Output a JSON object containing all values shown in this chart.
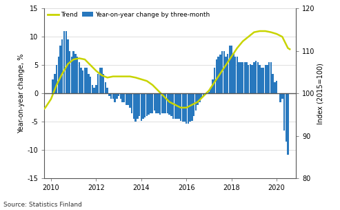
{
  "ylabel_left": "Year-on-year change, %",
  "ylabel_right": "Index (2015=100)",
  "source": "Source: Statistics Finland",
  "ylim_left": [
    -15,
    15
  ],
  "ylim_right": [
    80,
    120
  ],
  "bar_color": "#2878be",
  "trend_color": "#c8d400",
  "background_color": "#ffffff",
  "grid_color": "#d0d0d0",
  "legend_trend": "Trend",
  "legend_bar": "Year-on-year change by three-month",
  "bar_data": {
    "dates": [
      2010.083,
      2010.167,
      2010.25,
      2010.333,
      2010.417,
      2010.5,
      2010.583,
      2010.667,
      2010.75,
      2010.833,
      2010.917,
      2011.0,
      2011.083,
      2011.167,
      2011.25,
      2011.333,
      2011.417,
      2011.5,
      2011.583,
      2011.667,
      2011.75,
      2011.833,
      2011.917,
      2012.0,
      2012.083,
      2012.167,
      2012.25,
      2012.333,
      2012.417,
      2012.5,
      2012.583,
      2012.667,
      2012.75,
      2012.833,
      2012.917,
      2013.0,
      2013.083,
      2013.167,
      2013.25,
      2013.333,
      2013.417,
      2013.5,
      2013.583,
      2013.667,
      2013.75,
      2013.833,
      2013.917,
      2014.0,
      2014.083,
      2014.167,
      2014.25,
      2014.333,
      2014.417,
      2014.5,
      2014.583,
      2014.667,
      2014.75,
      2014.833,
      2014.917,
      2015.0,
      2015.083,
      2015.167,
      2015.25,
      2015.333,
      2015.417,
      2015.5,
      2015.583,
      2015.667,
      2015.75,
      2015.833,
      2015.917,
      2016.0,
      2016.083,
      2016.167,
      2016.25,
      2016.333,
      2016.417,
      2016.5,
      2016.583,
      2016.667,
      2016.75,
      2016.833,
      2016.917,
      2017.0,
      2017.083,
      2017.167,
      2017.25,
      2017.333,
      2017.417,
      2017.5,
      2017.583,
      2017.667,
      2017.75,
      2017.833,
      2017.917,
      2018.0,
      2018.083,
      2018.167,
      2018.25,
      2018.333,
      2018.417,
      2018.5,
      2018.583,
      2018.667,
      2018.75,
      2018.833,
      2018.917,
      2019.0,
      2019.083,
      2019.167,
      2019.25,
      2019.333,
      2019.417,
      2019.5,
      2019.583,
      2019.667,
      2019.75,
      2019.833,
      2019.917,
      2020.0,
      2020.083,
      2020.167,
      2020.25,
      2020.333,
      2020.417,
      2020.5
    ],
    "values": [
      2.5,
      3.5,
      5.0,
      6.5,
      8.5,
      9.5,
      11.0,
      11.0,
      9.5,
      7.5,
      6.5,
      7.5,
      7.0,
      6.5,
      5.5,
      4.5,
      4.0,
      4.5,
      4.5,
      3.5,
      3.0,
      1.5,
      1.0,
      1.5,
      3.5,
      4.5,
      4.5,
      3.5,
      2.0,
      1.0,
      -0.5,
      -1.0,
      -1.0,
      -1.5,
      -1.0,
      -0.5,
      -1.0,
      -1.5,
      -1.5,
      -2.0,
      -2.0,
      -2.5,
      -3.5,
      -4.5,
      -5.0,
      -4.5,
      -4.0,
      -4.8,
      -4.5,
      -4.2,
      -4.0,
      -3.8,
      -3.5,
      -3.5,
      -3.0,
      -3.5,
      -3.5,
      -3.8,
      -3.5,
      -3.5,
      -3.5,
      -3.5,
      -3.8,
      -4.0,
      -4.5,
      -4.5,
      -4.5,
      -4.5,
      -4.8,
      -5.0,
      -5.0,
      -5.3,
      -5.3,
      -5.0,
      -4.8,
      -4.0,
      -3.0,
      -2.0,
      -1.5,
      -1.0,
      -0.5,
      0.0,
      0.3,
      0.3,
      1.0,
      2.5,
      4.5,
      6.0,
      6.5,
      6.8,
      7.5,
      7.5,
      6.5,
      7.0,
      8.5,
      8.5,
      7.0,
      6.5,
      6.5,
      5.5,
      5.5,
      5.5,
      5.5,
      5.5,
      5.0,
      5.2,
      5.0,
      5.5,
      5.8,
      5.5,
      5.0,
      4.5,
      4.5,
      5.0,
      5.0,
      5.5,
      5.5,
      3.5,
      2.0,
      2.2,
      0.0,
      -1.5,
      -1.0,
      -6.5,
      -8.5,
      -10.8
    ]
  },
  "trend_data": {
    "dates": [
      2009.5,
      2009.75,
      2010.0,
      2010.25,
      2010.5,
      2010.75,
      2011.0,
      2011.25,
      2011.5,
      2011.75,
      2012.0,
      2012.25,
      2012.5,
      2012.75,
      2013.0,
      2013.25,
      2013.5,
      2013.75,
      2014.0,
      2014.25,
      2014.5,
      2014.75,
      2015.0,
      2015.25,
      2015.5,
      2015.75,
      2016.0,
      2016.25,
      2016.5,
      2016.75,
      2017.0,
      2017.25,
      2017.5,
      2017.75,
      2018.0,
      2018.25,
      2018.5,
      2018.75,
      2019.0,
      2019.25,
      2019.5,
      2019.75,
      2020.0,
      2020.25,
      2020.5,
      2020.583
    ],
    "values": [
      -3.5,
      -2.5,
      -1.0,
      1.5,
      3.5,
      5.2,
      6.0,
      6.2,
      6.0,
      5.0,
      4.0,
      3.2,
      2.8,
      3.0,
      3.0,
      3.0,
      3.0,
      2.8,
      2.5,
      2.2,
      1.5,
      0.5,
      -0.5,
      -1.5,
      -2.0,
      -2.5,
      -2.5,
      -2.0,
      -1.5,
      -0.5,
      0.5,
      2.0,
      3.5,
      5.0,
      6.5,
      8.0,
      9.2,
      10.0,
      10.8,
      11.0,
      11.0,
      10.8,
      10.5,
      10.0,
      8.0,
      7.8
    ]
  }
}
